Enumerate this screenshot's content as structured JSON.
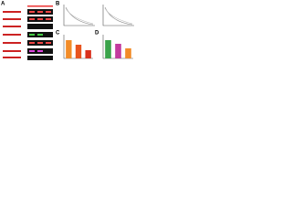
{
  "panels": [
    {
      "label": "A"
    },
    {
      "label": "B"
    },
    {
      "label": "C"
    },
    {
      "label": "D"
    }
  ],
  "charts": [
    {
      "type": "bar",
      "colors": [
        "#f28c28",
        "#e8541e",
        "#d9301c"
      ],
      "values": [
        1,
        0.75,
        0.45
      ],
      "ylim": [
        0,
        1.2
      ]
    },
    {
      "type": "bar",
      "colors": [
        "#3aa34a",
        "#c23b9e",
        "#f28c28"
      ],
      "values": [
        1,
        0.8,
        0.55
      ],
      "ylim": [
        0,
        1.2
      ]
    }
  ]
}
